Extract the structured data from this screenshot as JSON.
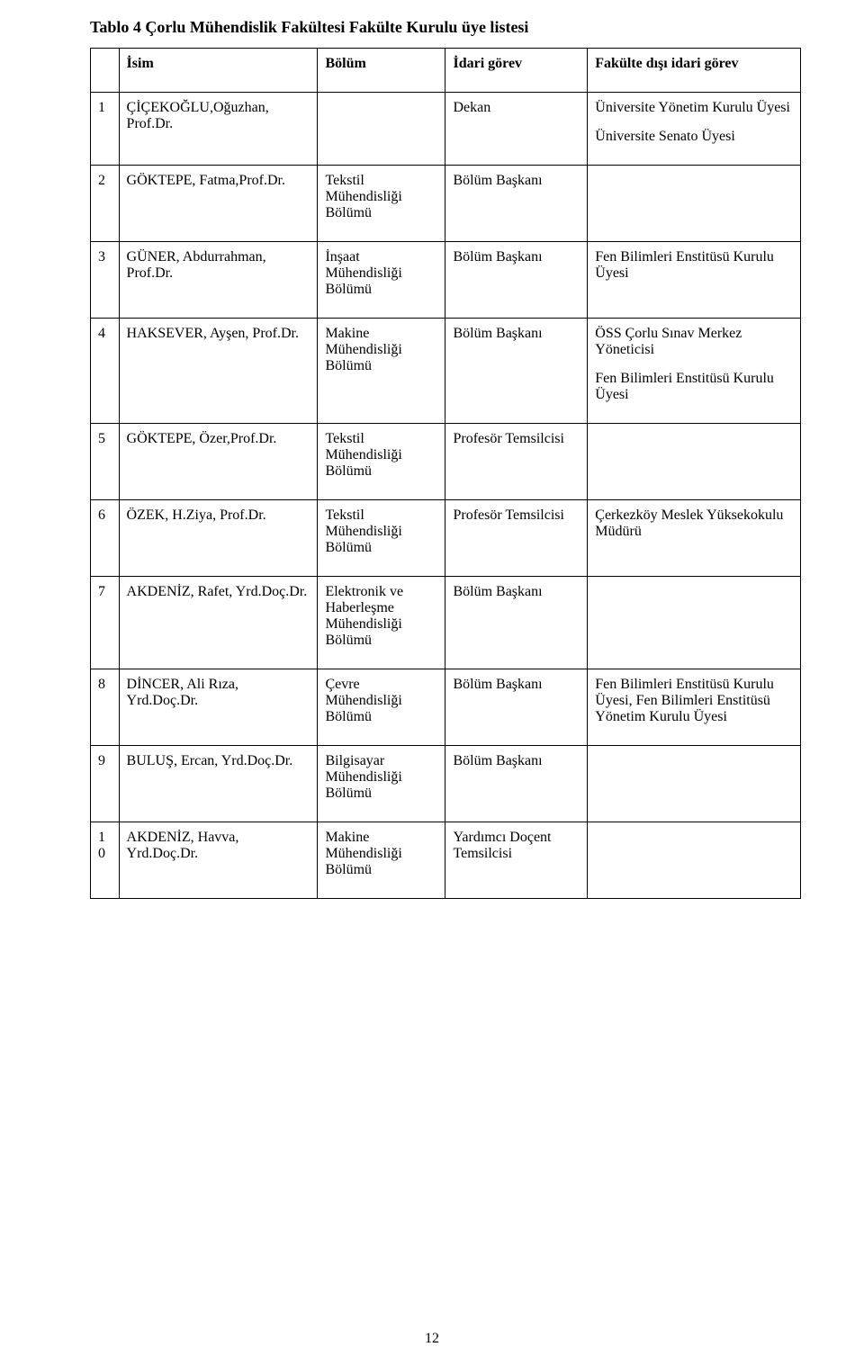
{
  "title": "Tablo 4 Çorlu Mühendislik Fakültesi  Fakülte Kurulu üye listesi",
  "headers": {
    "num": "",
    "isim": "İsim",
    "bolum": "Bölüm",
    "idari_gorev": "İdari görev",
    "disi_gorev": "Fakülte dışı idari görev"
  },
  "rows": [
    {
      "n": "1",
      "isim": "ÇİÇEKOĞLU,Oğuzhan, Prof.Dr.",
      "bolum": "",
      "idari": "Dekan",
      "disi": "Üniversite Yönetim Kurulu Üyesi",
      "disi_extra": "Üniversite Senato Üyesi"
    },
    {
      "n": "2",
      "isim": "GÖKTEPE, Fatma,Prof.Dr.",
      "bolum": "Tekstil Mühendisliği Bölümü",
      "idari": "Bölüm Başkanı",
      "disi": ""
    },
    {
      "n": "3",
      "isim": "GÜNER, Abdurrahman, Prof.Dr.",
      "bolum": "İnşaat Mühendisliği Bölümü",
      "idari": "Bölüm Başkanı",
      "disi": "Fen Bilimleri Enstitüsü Kurulu Üyesi"
    },
    {
      "n": "4",
      "isim": "HAKSEVER, Ayşen, Prof.Dr.",
      "bolum": "Makine Mühendisliği Bölümü",
      "idari": "Bölüm Başkanı",
      "disi": "ÖSS Çorlu Sınav Merkez Yöneticisi",
      "disi_extra": "Fen Bilimleri Enstitüsü Kurulu Üyesi"
    },
    {
      "n": "5",
      "isim": "GÖKTEPE, Özer,Prof.Dr.",
      "bolum": "Tekstil Mühendisliği Bölümü",
      "idari": "Profesör Temsilcisi",
      "disi": ""
    },
    {
      "n": "6",
      "isim": "ÖZEK, H.Ziya, Prof.Dr.",
      "bolum": "Tekstil Mühendisliği Bölümü",
      "idari": "Profesör Temsilcisi",
      "disi": "Çerkezköy Meslek Yüksekokulu Müdürü"
    },
    {
      "n": "7",
      "isim": "AKDENİZ, Rafet, Yrd.Doç.Dr.",
      "bolum": "Elektronik ve Haberleşme Mühendisliği Bölümü",
      "idari": "Bölüm Başkanı",
      "disi": ""
    },
    {
      "n": "8",
      "isim": "DİNCER, Ali Rıza, Yrd.Doç.Dr.",
      "bolum": "Çevre Mühendisliği Bölümü",
      "idari": "Bölüm Başkanı",
      "disi": "Fen Bilimleri Enstitüsü Kurulu Üyesi, Fen Bilimleri Enstitüsü Yönetim Kurulu Üyesi"
    },
    {
      "n": "9",
      "isim": "BULUŞ, Ercan, Yrd.Doç.Dr.",
      "bolum": "Bilgisayar Mühendisliği Bölümü",
      "idari": "Bölüm Başkanı",
      "disi": ""
    },
    {
      "n": "10",
      "isim": "AKDENİZ, Havva, Yrd.Doç.Dr.",
      "bolum": "Makine Mühendisliği Bölümü",
      "idari": "Yardımcı Doçent Temsilcisi",
      "disi": ""
    }
  ],
  "page_number": "12"
}
